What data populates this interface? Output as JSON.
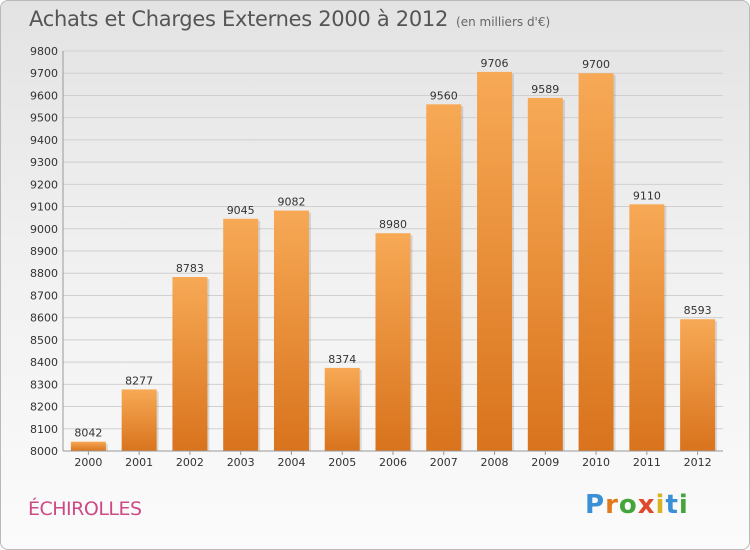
{
  "header": {
    "title": "Achats et Charges Externes 2000 à 2012",
    "subtitle": "(en milliers d'€)"
  },
  "footer": {
    "city": "ÉCHIROLLES",
    "logo": "Proxiti"
  },
  "colors": {
    "bar_light": "#f7a955",
    "bar_dark": "#d9731d",
    "city_text": "#cd4a86"
  },
  "chart_data": {
    "type": "bar",
    "title": "Achats et Charges Externes 2000 à 2012",
    "categories": [
      "2000",
      "2001",
      "2002",
      "2003",
      "2004",
      "2005",
      "2006",
      "2007",
      "2008",
      "2009",
      "2010",
      "2011",
      "2012"
    ],
    "values": [
      8042,
      8277,
      8783,
      9045,
      9082,
      8374,
      8980,
      9560,
      9706,
      9589,
      9700,
      9110,
      8593
    ],
    "ylim": [
      8000,
      9800
    ],
    "yticks": [
      8000,
      8100,
      8200,
      8300,
      8400,
      8500,
      8600,
      8700,
      8800,
      8900,
      9000,
      9100,
      9200,
      9300,
      9400,
      9500,
      9600,
      9700,
      9800
    ],
    "grid": true,
    "data_labels": true
  }
}
